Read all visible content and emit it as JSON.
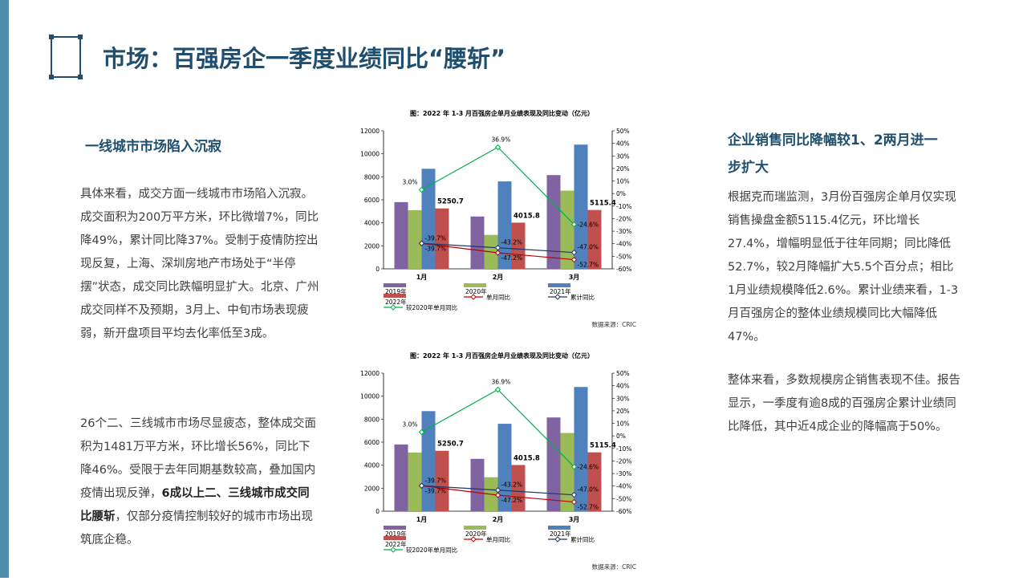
{
  "slide_title": "市场：百强房企一季度业绩同比“腰斩”",
  "left": {
    "heading": "一线城市市场陷入沉寂",
    "para1": "具体来看，成交方面一线城市市场陷入沉寂。成交面积为200万平方米，环比微增7%，同比降49%，累计同比降37%。受制于疫情防控出现反复，上海、深圳房地产市场处于“半停摆”状态，成交同比跌幅明显扩大。北京、广州成交同样不及预期，3月上、中旬市场表现疲弱，新开盘项目平均去化率低至3成。",
    "para2_a": "26个二、三线城市市场尽显疲态，整体成交面积为1481万平方米，环比增长56%，同比下降46%。受限于去年同期基数较高，叠加国内疫情出现反弹，",
    "para2_bold": "6成以上二、三线城市成交同比腰斩",
    "para2_b": "，仅部分疫情控制较好的城市市场出现筑底企稳。"
  },
  "right": {
    "heading": "企业销售同比降幅较1、2两月进一步扩大",
    "para1": "根据克而瑞监测，3月份百强房企单月仅实现销售操盘金额5115.4亿元，环比增长27.4%，增幅明显低于往年同期；同比降低52.7%，较2月降幅扩大5.5个百分点；相比1月业绩规模降低2.6%。累计业绩来看，1-3月百强房企的整体业绩规模同比大幅降低47%。",
    "para2": "整体来看，多数规模房企销售表现不佳。报告显示，一季度有逾8成的百强房企累计业绩同比降低，其中近4成企业的降幅高于50%。"
  },
  "chart_data": [
    {
      "type": "bar",
      "title": "图：2022 年 1-3 月百强房企单月业绩表现及同比变动（亿元）",
      "source": "数据来源：CRIC",
      "categories": [
        "1月",
        "2月",
        "3月"
      ],
      "series": [
        {
          "name": "2019年",
          "values": [
            5800,
            4550,
            8150
          ],
          "color": "#8064a2"
        },
        {
          "name": "2020年",
          "values": [
            5100,
            2950,
            6800
          ],
          "color": "#9bbb59"
        },
        {
          "name": "2021年",
          "values": [
            8700,
            7600,
            10800
          ],
          "color": "#4f81bd"
        },
        {
          "name": "2022年",
          "values": [
            5250.7,
            4015.8,
            5115.4
          ],
          "color": "#c0504d"
        }
      ],
      "line_series": [
        {
          "name": "单月同比",
          "values": [
            -39.7,
            -47.2,
            -52.7
          ],
          "color": "#c00000"
        },
        {
          "name": "累计同比",
          "values": [
            -39.7,
            -43.2,
            -47.0
          ],
          "color": "#1f3864"
        },
        {
          "name": "较2020年单月同比",
          "values": [
            3.0,
            36.9,
            -24.6
          ],
          "color": "#00b050"
        }
      ],
      "bar_labels": [
        "5250.7",
        "4015.8",
        "5115.4"
      ],
      "line_labels": {
        "green": [
          "3.0%",
          "36.9%",
          "-24.6%"
        ],
        "upper": [
          "-39.7%",
          "-43.2%",
          "-47.0%"
        ],
        "lower": [
          "-39.7%",
          "-47.2%",
          "-52.7%"
        ]
      },
      "y_left": {
        "min": 0,
        "max": 12000,
        "ticks": [
          "0",
          "2000",
          "4000",
          "6000",
          "8000",
          "10000",
          "12000"
        ]
      },
      "y_right": {
        "min": -60,
        "max": 50,
        "ticks": [
          "-60%",
          "-50%",
          "-40%",
          "-30%",
          "-20%",
          "-10%",
          "0%",
          "10%",
          "20%",
          "30%",
          "40%",
          "50%"
        ]
      },
      "legend_position": "bottom"
    },
    {
      "type": "bar",
      "title": "图：2022 年 1-3 月百强房企单月业绩表现及同比变动（亿元）",
      "source": "数据来源：CRIC",
      "categories": [
        "1月",
        "2月",
        "3月"
      ],
      "series": [
        {
          "name": "2019年",
          "values": [
            5800,
            4550,
            8150
          ],
          "color": "#8064a2"
        },
        {
          "name": "2020年",
          "values": [
            5100,
            2950,
            6800
          ],
          "color": "#9bbb59"
        },
        {
          "name": "2021年",
          "values": [
            8700,
            7600,
            10800
          ],
          "color": "#4f81bd"
        },
        {
          "name": "2022年",
          "values": [
            5250.7,
            4015.8,
            5115.4
          ],
          "color": "#c0504d"
        }
      ],
      "line_series": [
        {
          "name": "单月同比",
          "values": [
            -39.7,
            -47.2,
            -52.7
          ],
          "color": "#c00000"
        },
        {
          "name": "累计同比",
          "values": [
            -39.7,
            -43.2,
            -47.0
          ],
          "color": "#1f3864"
        },
        {
          "name": "较2020年单月同比",
          "values": [
            3.0,
            36.9,
            -24.6
          ],
          "color": "#00b050"
        }
      ],
      "bar_labels": [
        "5250.7",
        "4015.8",
        "5115.4"
      ],
      "line_labels": {
        "green": [
          "3.0%",
          "36.9%",
          "-24.6%"
        ],
        "upper": [
          "-39.7%",
          "-43.2%",
          "-47.0%"
        ],
        "lower": [
          "-39.7%",
          "-47.2%",
          "-52.7%"
        ]
      },
      "y_left": {
        "min": 0,
        "max": 12000,
        "ticks": [
          "0",
          "2000",
          "4000",
          "6000",
          "8000",
          "10000",
          "12000"
        ]
      },
      "y_right": {
        "min": -60,
        "max": 50,
        "ticks": [
          "-60%",
          "-50%",
          "-40%",
          "-30%",
          "-20%",
          "-10%",
          "0%",
          "10%",
          "20%",
          "30%",
          "40%",
          "50%"
        ]
      },
      "legend_position": "bottom"
    }
  ]
}
